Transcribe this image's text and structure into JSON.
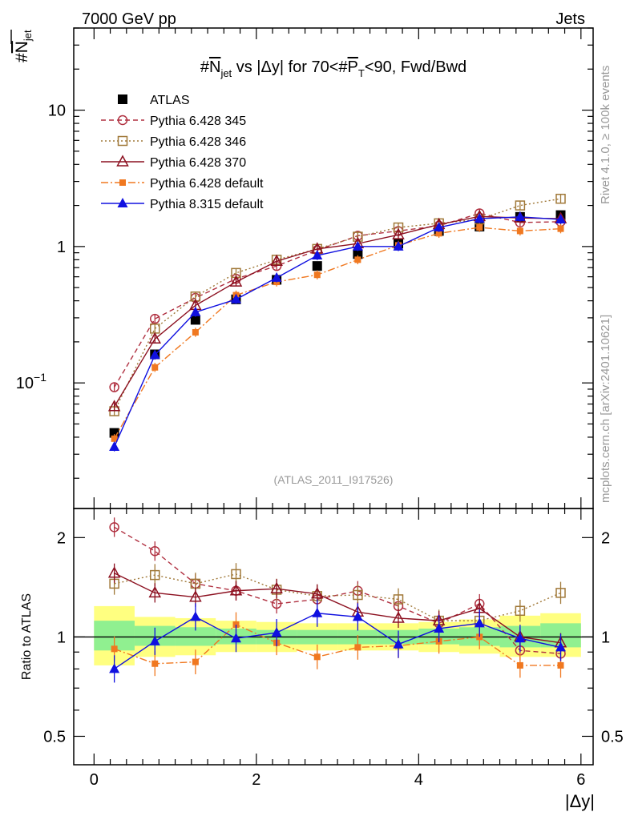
{
  "header": {
    "left": "7000 GeV pp",
    "right": "Jets"
  },
  "watermark": {
    "rivet": "Rivet 4.1.0, ≥ 100k events",
    "mcplots": "mcplots.cern.ch [arXiv:2401.10621]"
  },
  "colors": {
    "atlas": "#000000",
    "p345": "#b03040",
    "p346": "#a07838",
    "p370": "#8c1020",
    "p6def": "#f07820",
    "p8def": "#1010e0",
    "band_inner": "#90f090",
    "band_outer": "#ffff80"
  },
  "chart_data": [
    {
      "type": "scatter",
      "title": "#N̅jet vs |Δy| for 70<#P̅T<90, Fwd/Bwd",
      "title_parts": {
        "a": "#",
        "b": "N",
        "c": "jet",
        "d": " vs |Δy| for 70<#",
        "e": "P",
        "f": "T",
        "g": "<90, Fwd/Bwd"
      },
      "ylabel": {
        "hash": "#",
        "n": "N",
        "sub": "jet"
      },
      "yscale": "log",
      "ylim": [
        0.012,
        40
      ],
      "xlim": [
        -0.25,
        6.15
      ],
      "yticks": [
        {
          "v": 0.1,
          "base": "10",
          "exp": "−1"
        },
        {
          "v": 1,
          "base": "1",
          "exp": ""
        },
        {
          "v": 10,
          "base": "10",
          "exp": ""
        }
      ],
      "annotation": "(ATLAS_2011_I917526)",
      "x": [
        0.25,
        0.75,
        1.25,
        1.75,
        2.25,
        2.75,
        3.25,
        3.75,
        4.25,
        4.75,
        5.25,
        5.75
      ],
      "series": [
        {
          "name": "ATLAS",
          "key": "atlas",
          "marker": "square-filled",
          "line": "none",
          "values": [
            0.043,
            0.162,
            0.29,
            0.41,
            0.57,
            0.72,
            0.88,
            1.05,
            1.3,
            1.4,
            1.65,
            1.7
          ],
          "err": 0.05
        },
        {
          "name": "Pythia 6.428 345",
          "key": "p345",
          "marker": "circle-open",
          "line": "dashed",
          "values": [
            0.093,
            0.295,
            0.42,
            0.58,
            0.72,
            0.94,
            1.2,
            1.3,
            1.42,
            1.75,
            1.5,
            1.52
          ],
          "err": 0.07
        },
        {
          "name": "Pythia 6.428 346",
          "key": "p346",
          "marker": "square-open",
          "line": "dotted",
          "values": [
            0.062,
            0.25,
            0.43,
            0.64,
            0.8,
            0.96,
            1.18,
            1.38,
            1.48,
            1.58,
            2.0,
            2.24
          ],
          "err": 0.07
        },
        {
          "name": "Pythia 6.428 370",
          "key": "p370",
          "marker": "triangle-open",
          "line": "solid",
          "values": [
            0.067,
            0.21,
            0.37,
            0.55,
            0.78,
            0.96,
            1.05,
            1.22,
            1.45,
            1.66,
            1.62,
            1.6
          ],
          "err": 0.07
        },
        {
          "name": "Pythia 6.428 default",
          "key": "p6def",
          "marker": "square-small-filled",
          "line": "dashdot",
          "values": [
            0.039,
            0.13,
            0.235,
            0.44,
            0.55,
            0.62,
            0.8,
            1.02,
            1.25,
            1.38,
            1.3,
            1.35
          ],
          "err": 0.08
        },
        {
          "name": "Pythia 8.315 default",
          "key": "p8def",
          "marker": "triangle-filled",
          "line": "solid",
          "values": [
            0.034,
            0.16,
            0.33,
            0.41,
            0.59,
            0.86,
            1.0,
            1.0,
            1.38,
            1.6,
            1.65,
            1.58
          ],
          "err": 0.08
        }
      ]
    },
    {
      "type": "scatter",
      "title": "",
      "ylabel": "Ratio to ATLAS",
      "xlabel": "|Δy|",
      "yscale": "log",
      "ylim": [
        0.41,
        2.45
      ],
      "xlim": [
        -0.25,
        6.15
      ],
      "yticks": [
        {
          "v": 0.5,
          "label": "0.5"
        },
        {
          "v": 1,
          "label": "1"
        },
        {
          "v": 2,
          "label": "2"
        }
      ],
      "xticks": [
        0,
        2,
        4,
        6
      ],
      "x": [
        0.25,
        0.75,
        1.25,
        1.75,
        2.25,
        2.75,
        3.25,
        3.75,
        4.25,
        4.75,
        5.25,
        5.75
      ],
      "band": {
        "edges": [
          0.0,
          0.5,
          1.0,
          1.5,
          2.0,
          2.5,
          3.0,
          3.5,
          4.0,
          4.5,
          5.0,
          5.5,
          6.0
        ],
        "inner": [
          [
            0.91,
            1.12
          ],
          [
            0.94,
            1.08
          ],
          [
            0.94,
            1.07
          ],
          [
            0.95,
            1.06
          ],
          [
            0.95,
            1.05
          ],
          [
            0.95,
            1.05
          ],
          [
            0.95,
            1.05
          ],
          [
            0.95,
            1.05
          ],
          [
            0.95,
            1.06
          ],
          [
            0.94,
            1.07
          ],
          [
            0.93,
            1.08
          ],
          [
            0.93,
            1.1
          ]
        ],
        "outer": [
          [
            0.82,
            1.24
          ],
          [
            0.87,
            1.15
          ],
          [
            0.88,
            1.14
          ],
          [
            0.9,
            1.12
          ],
          [
            0.9,
            1.11
          ],
          [
            0.91,
            1.1
          ],
          [
            0.91,
            1.1
          ],
          [
            0.91,
            1.1
          ],
          [
            0.9,
            1.11
          ],
          [
            0.89,
            1.13
          ],
          [
            0.87,
            1.16
          ],
          [
            0.87,
            1.18
          ]
        ]
      },
      "series": [
        {
          "name": "Pythia 6.428 345",
          "key": "p345",
          "marker": "circle-open",
          "line": "dashed",
          "values": [
            2.15,
            1.82,
            1.45,
            1.38,
            1.26,
            1.3,
            1.38,
            1.24,
            1.1,
            1.26,
            0.91,
            0.89
          ],
          "err": 0.07
        },
        {
          "name": "Pythia 6.428 346",
          "key": "p346",
          "marker": "square-open",
          "line": "dotted",
          "values": [
            1.45,
            1.54,
            1.45,
            1.55,
            1.39,
            1.33,
            1.34,
            1.3,
            1.12,
            1.12,
            1.2,
            1.36
          ],
          "err": 0.08
        },
        {
          "name": "Pythia 6.428 370",
          "key": "p370",
          "marker": "triangle-open",
          "line": "solid",
          "values": [
            1.56,
            1.36,
            1.32,
            1.38,
            1.4,
            1.35,
            1.19,
            1.14,
            1.12,
            1.22,
            1.0,
            0.96
          ],
          "err": 0.07
        },
        {
          "name": "Pythia 6.428 default",
          "key": "p6def",
          "marker": "square-small-filled",
          "line": "dashdot",
          "values": [
            0.92,
            0.83,
            0.84,
            1.09,
            0.96,
            0.87,
            0.93,
            0.94,
            0.97,
            1.0,
            0.82,
            0.82
          ],
          "err": 0.09
        },
        {
          "name": "Pythia 8.315 default",
          "key": "p8def",
          "marker": "triangle-filled",
          "line": "solid",
          "values": [
            0.8,
            0.97,
            1.15,
            0.99,
            1.03,
            1.18,
            1.15,
            0.95,
            1.06,
            1.1,
            0.99,
            0.93
          ],
          "err": 0.1
        }
      ]
    }
  ]
}
